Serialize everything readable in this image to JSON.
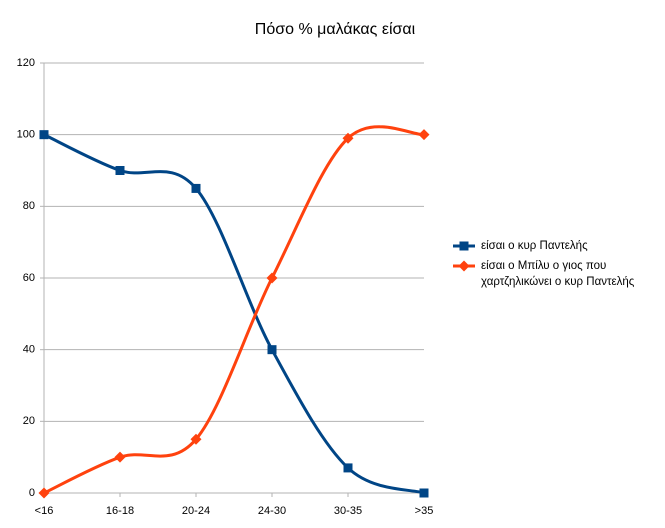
{
  "chart_data": {
    "type": "line",
    "title": "Πόσο % μαλάκας είσαι",
    "categories": [
      "<16",
      "16-18",
      "20-24",
      "24-30",
      "30-35",
      ">35"
    ],
    "series": [
      {
        "name": "είσαι ο κυρ Παντελής",
        "color": "#004586",
        "marker": "square",
        "values": [
          100,
          90,
          85,
          40,
          7,
          0
        ]
      },
      {
        "name": "είσαι ο Μπίλυ ο γιος που χαρτζηλικώνει ο κυρ Παντελής",
        "color": "#ff420e",
        "marker": "diamond",
        "values": [
          0,
          10,
          15,
          60,
          99,
          100
        ]
      }
    ],
    "ylim": [
      0,
      120
    ],
    "yticks": [
      0,
      20,
      40,
      60,
      80,
      100,
      120
    ],
    "grid": true,
    "smooth": true,
    "legend": "right"
  }
}
